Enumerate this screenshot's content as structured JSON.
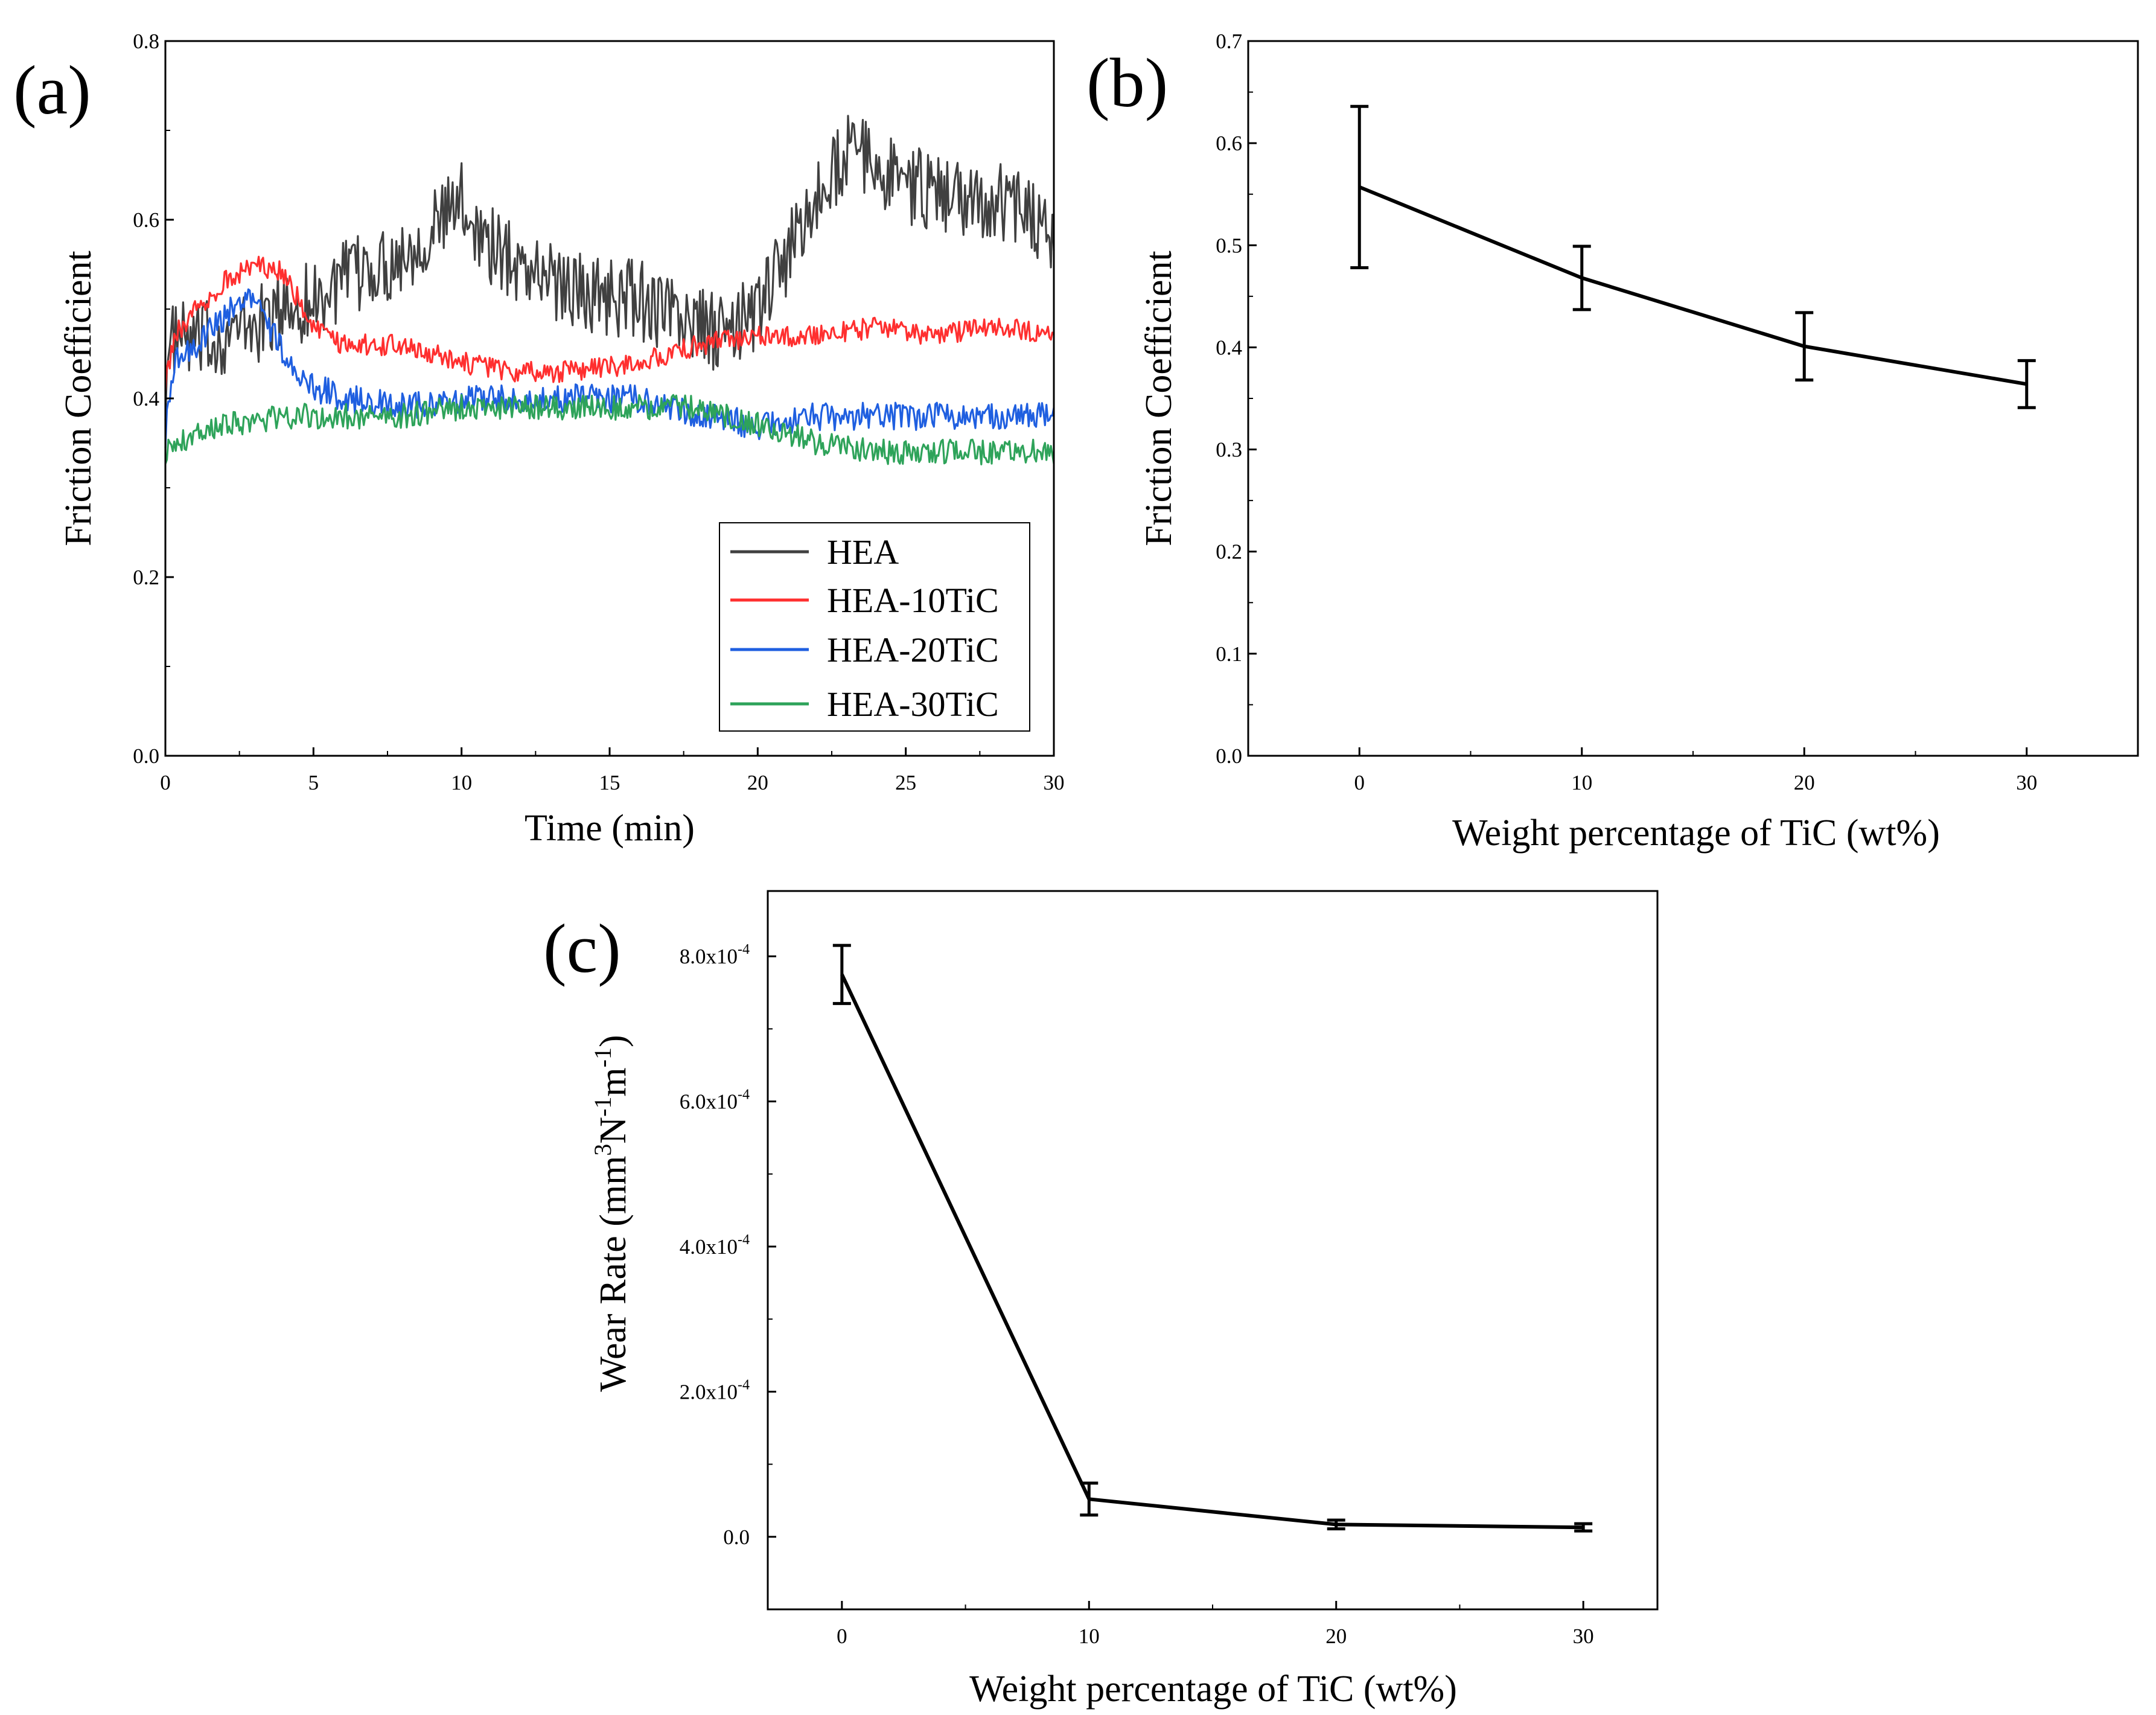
{
  "chart_data": [
    {
      "panel": "(a)",
      "type": "line",
      "xlabel": "Time (min)",
      "ylabel": "Friction Coefficient",
      "xlim": [
        0,
        30
      ],
      "ylim": [
        0,
        0.8
      ],
      "xticks": [
        "0",
        "5",
        "10",
        "15",
        "20",
        "25",
        "30"
      ],
      "yticks": [
        "0.0",
        "0.2",
        "0.4",
        "0.6",
        "0.8"
      ],
      "legend_position": "bottom-right",
      "series": [
        {
          "name": "HEA",
          "color": "#404040",
          "noise": 0.045,
          "x": [
            0,
            0.3,
            1,
            2,
            3,
            4,
            5,
            6,
            8,
            10,
            11,
            12,
            14,
            16,
            18,
            19,
            20,
            21,
            22,
            23,
            24,
            25,
            26,
            27,
            28,
            29,
            30
          ],
          "y": [
            0.42,
            0.47,
            0.46,
            0.47,
            0.48,
            0.5,
            0.51,
            0.53,
            0.56,
            0.62,
            0.57,
            0.55,
            0.52,
            0.51,
            0.48,
            0.47,
            0.5,
            0.56,
            0.62,
            0.68,
            0.66,
            0.64,
            0.63,
            0.62,
            0.62,
            0.62,
            0.58
          ]
        },
        {
          "name": "HEA-10TiC",
          "color": "#ff2f2f",
          "noise": 0.012,
          "x": [
            0,
            0.3,
            1,
            2,
            3,
            4,
            5,
            6,
            8,
            10,
            12,
            14,
            16,
            18,
            20,
            22,
            24,
            26,
            28,
            30
          ],
          "y": [
            0.42,
            0.47,
            0.5,
            0.53,
            0.55,
            0.54,
            0.48,
            0.46,
            0.46,
            0.44,
            0.43,
            0.43,
            0.44,
            0.46,
            0.47,
            0.47,
            0.48,
            0.47,
            0.48,
            0.47
          ]
        },
        {
          "name": "HEA-20TiC",
          "color": "#1f5fe0",
          "noise": 0.016,
          "x": [
            0,
            0.3,
            1,
            2,
            2.8,
            3.5,
            4.5,
            6,
            8,
            10,
            12,
            14,
            16,
            18,
            20,
            22,
            24,
            26,
            28,
            30
          ],
          "y": [
            0.36,
            0.44,
            0.46,
            0.49,
            0.52,
            0.48,
            0.42,
            0.4,
            0.39,
            0.4,
            0.4,
            0.4,
            0.4,
            0.38,
            0.37,
            0.38,
            0.38,
            0.38,
            0.38,
            0.38
          ]
        },
        {
          "name": "HEA-30TiC",
          "color": "#2ea35a",
          "noise": 0.014,
          "x": [
            0,
            1,
            2,
            4,
            6,
            8,
            10,
            12,
            14,
            16,
            18,
            20,
            22,
            24,
            26,
            28,
            30
          ],
          "y": [
            0.34,
            0.36,
            0.37,
            0.38,
            0.38,
            0.38,
            0.39,
            0.39,
            0.39,
            0.39,
            0.39,
            0.37,
            0.35,
            0.34,
            0.34,
            0.34,
            0.34
          ]
        }
      ]
    },
    {
      "panel": "(b)",
      "type": "line",
      "xlabel": "Weight percentage of TiC (wt%)",
      "ylabel": "Friction Coefficient",
      "xlim": [
        -5,
        35
      ],
      "ylim": [
        0,
        0.7
      ],
      "xticks": [
        "0",
        "10",
        "20",
        "30"
      ],
      "yticks": [
        "0.0",
        "0.1",
        "0.2",
        "0.3",
        "0.4",
        "0.5",
        "0.6",
        "0.7"
      ],
      "series": [
        {
          "name": "Friction Coefficient",
          "color": "#000000",
          "x": [
            0,
            10,
            20,
            30
          ],
          "y": [
            0.557,
            0.468,
            0.401,
            0.364
          ],
          "err": [
            0.079,
            0.031,
            0.033,
            0.023
          ]
        }
      ]
    },
    {
      "panel": "(c)",
      "type": "line",
      "xlabel": "Weight percentage of TiC (wt%)",
      "ylabel": "Wear Rate (mm",
      "ylabel_sup1": "3",
      "ylabel_mid": "N",
      "ylabel_sup2": "-1",
      "ylabel_mid2": "m",
      "ylabel_sup3": "-1",
      "ylabel_end": ")",
      "xlim": [
        -3,
        33
      ],
      "ylim": [
        -0.0001,
        0.00089
      ],
      "xticks": [
        "0",
        "10",
        "20",
        "30"
      ],
      "yticks": [
        {
          "base": "0.0",
          "exp": ""
        },
        {
          "base": "2.0x10",
          "exp": "-4"
        },
        {
          "base": "4.0x10",
          "exp": "-4"
        },
        {
          "base": "6.0x10",
          "exp": "-4"
        },
        {
          "base": "8.0x10",
          "exp": "-4"
        }
      ],
      "series": [
        {
          "name": "Wear Rate",
          "color": "#000000",
          "x": [
            0,
            10,
            20,
            30
          ],
          "y": [
            0.000775,
            5.2e-05,
            1.7e-05,
            1.3e-05
          ],
          "err": [
            4e-05,
            2.2e-05,
            6e-06,
            5e-06
          ]
        }
      ]
    }
  ]
}
